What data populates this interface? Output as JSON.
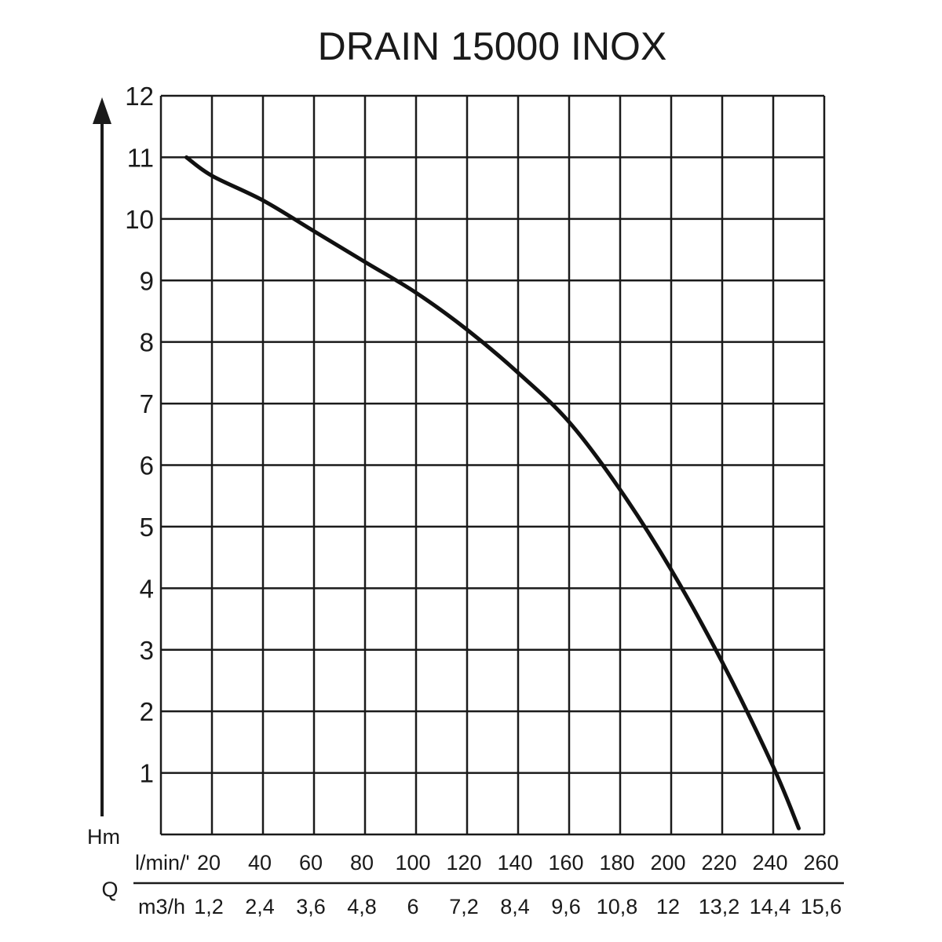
{
  "chart_data": {
    "type": "line",
    "title": "DRAIN 15000 INOX",
    "ylabel": "Hm",
    "xlabel": "Q",
    "ylim": [
      0,
      12
    ],
    "xlim": [
      0,
      260
    ],
    "grid": true,
    "y_ticks": [
      "1",
      "2",
      "3",
      "4",
      "5",
      "6",
      "7",
      "8",
      "9",
      "10",
      "11",
      "12"
    ],
    "x_axis_lmin": {
      "unit": "l/min/'",
      "ticks": [
        {
          "value": 20,
          "label": "20"
        },
        {
          "value": 40,
          "label": "40"
        },
        {
          "value": 60,
          "label": "60"
        },
        {
          "value": 80,
          "label": "80"
        },
        {
          "value": 100,
          "label": "100"
        },
        {
          "value": 120,
          "label": "120"
        },
        {
          "value": 140,
          "label": "140"
        },
        {
          "value": 160,
          "label": "160"
        },
        {
          "value": 180,
          "label": "180"
        },
        {
          "value": 200,
          "label": "200"
        },
        {
          "value": 220,
          "label": "220"
        },
        {
          "value": 240,
          "label": "240"
        },
        {
          "value": 260,
          "label": "260"
        }
      ]
    },
    "x_axis_m3h": {
      "unit": "m3/h",
      "ticks": [
        {
          "value": 20,
          "label": "1,2"
        },
        {
          "value": 40,
          "label": "2,4"
        },
        {
          "value": 60,
          "label": "3,6"
        },
        {
          "value": 80,
          "label": "4,8"
        },
        {
          "value": 100,
          "label": "6"
        },
        {
          "value": 120,
          "label": "7,2"
        },
        {
          "value": 140,
          "label": "8,4"
        },
        {
          "value": 160,
          "label": "9,6"
        },
        {
          "value": 180,
          "label": "10,8"
        },
        {
          "value": 200,
          "label": "12"
        },
        {
          "value": 220,
          "label": "13,2"
        },
        {
          "value": 240,
          "label": "14,4"
        },
        {
          "value": 260,
          "label": "15,6"
        }
      ]
    },
    "series": [
      {
        "x": [
          10,
          20,
          40,
          60,
          80,
          100,
          120,
          140,
          160,
          180,
          200,
          220,
          240,
          250
        ],
        "y": [
          11.0,
          10.7,
          10.3,
          9.8,
          9.3,
          8.8,
          8.2,
          7.5,
          6.7,
          5.6,
          4.3,
          2.8,
          1.1,
          0.1
        ]
      }
    ]
  }
}
